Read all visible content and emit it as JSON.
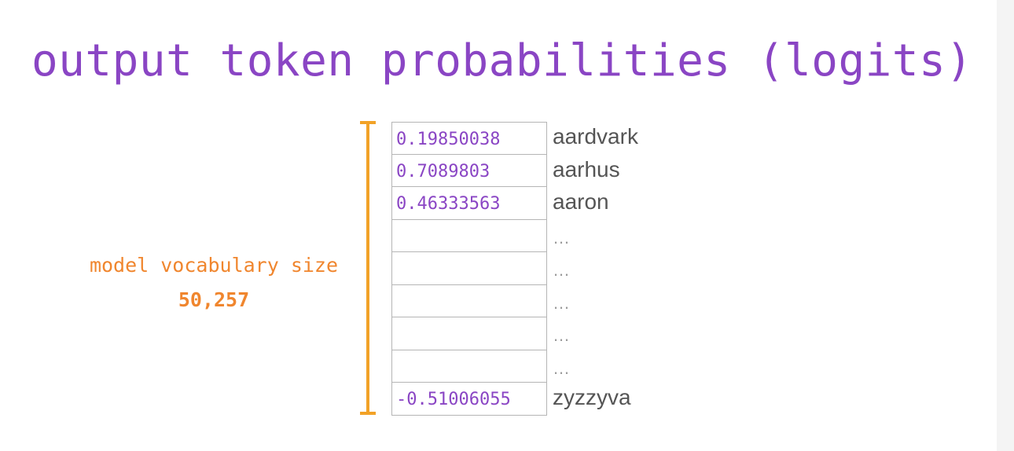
{
  "title": "output token probabilities (logits)",
  "vocab_label": "model vocabulary size",
  "vocab_size": "50,257",
  "colors": {
    "title": "#8a45c4",
    "vocab": "#f0862e",
    "bracket": "#f2a227",
    "token_text": "#555555",
    "cell_border": "#b5b5b5"
  },
  "rows": [
    {
      "value": "0.19850038",
      "token": "aardvark"
    },
    {
      "value": "0.7089803",
      "token": "aarhus"
    },
    {
      "value": "0.46333563",
      "token": "aaron"
    },
    {
      "value": "",
      "token": "…"
    },
    {
      "value": "",
      "token": "…"
    },
    {
      "value": "",
      "token": "…"
    },
    {
      "value": "",
      "token": "…"
    },
    {
      "value": "",
      "token": "…"
    },
    {
      "value": "-0.51006055",
      "token": "zyzzyva"
    }
  ]
}
